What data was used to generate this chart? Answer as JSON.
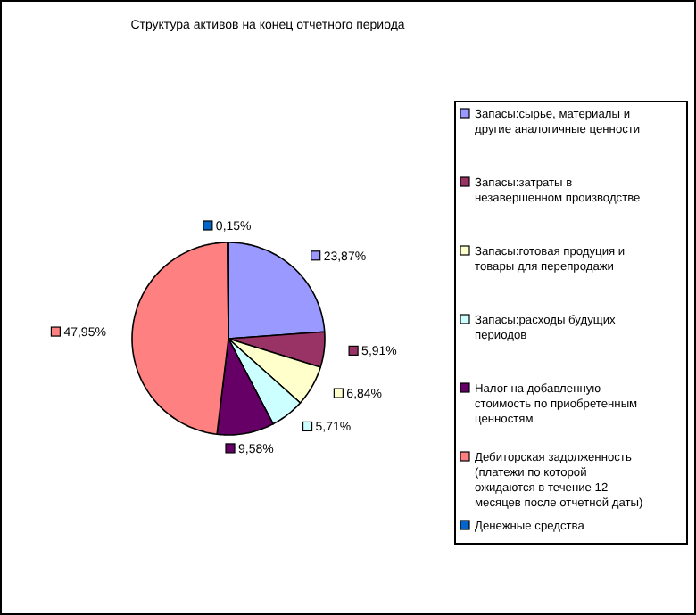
{
  "chart_data": {
    "type": "pie",
    "title": "Структура активов на конец отчетного периода",
    "categories": [
      "Запасы:сырье, материалы и другие аналогичные ценности",
      "Запасы:затраты в незавершенном производстве",
      "Запасы:готовая продуция и товары для перепродажи",
      "Запасы:расходы будущих периодов",
      "Налог на добавленную стоимость по приобретенным ценностям",
      "Дебиторская задолженность (платежи по которой ожидаются в течение 12 месяцев после отчетной даты)",
      "Денежные средства"
    ],
    "values": [
      23.87,
      5.91,
      6.84,
      5.71,
      9.58,
      47.95,
      0.15
    ],
    "value_labels": [
      "23,87%",
      "5,91%",
      "6,84%",
      "5,71%",
      "9,58%",
      "47,95%",
      "0,15%"
    ],
    "colors": [
      "#9999ff",
      "#993366",
      "#ffffcc",
      "#ccffff",
      "#660066",
      "#ff8080",
      "#0066cc"
    ],
    "legend": "right"
  }
}
